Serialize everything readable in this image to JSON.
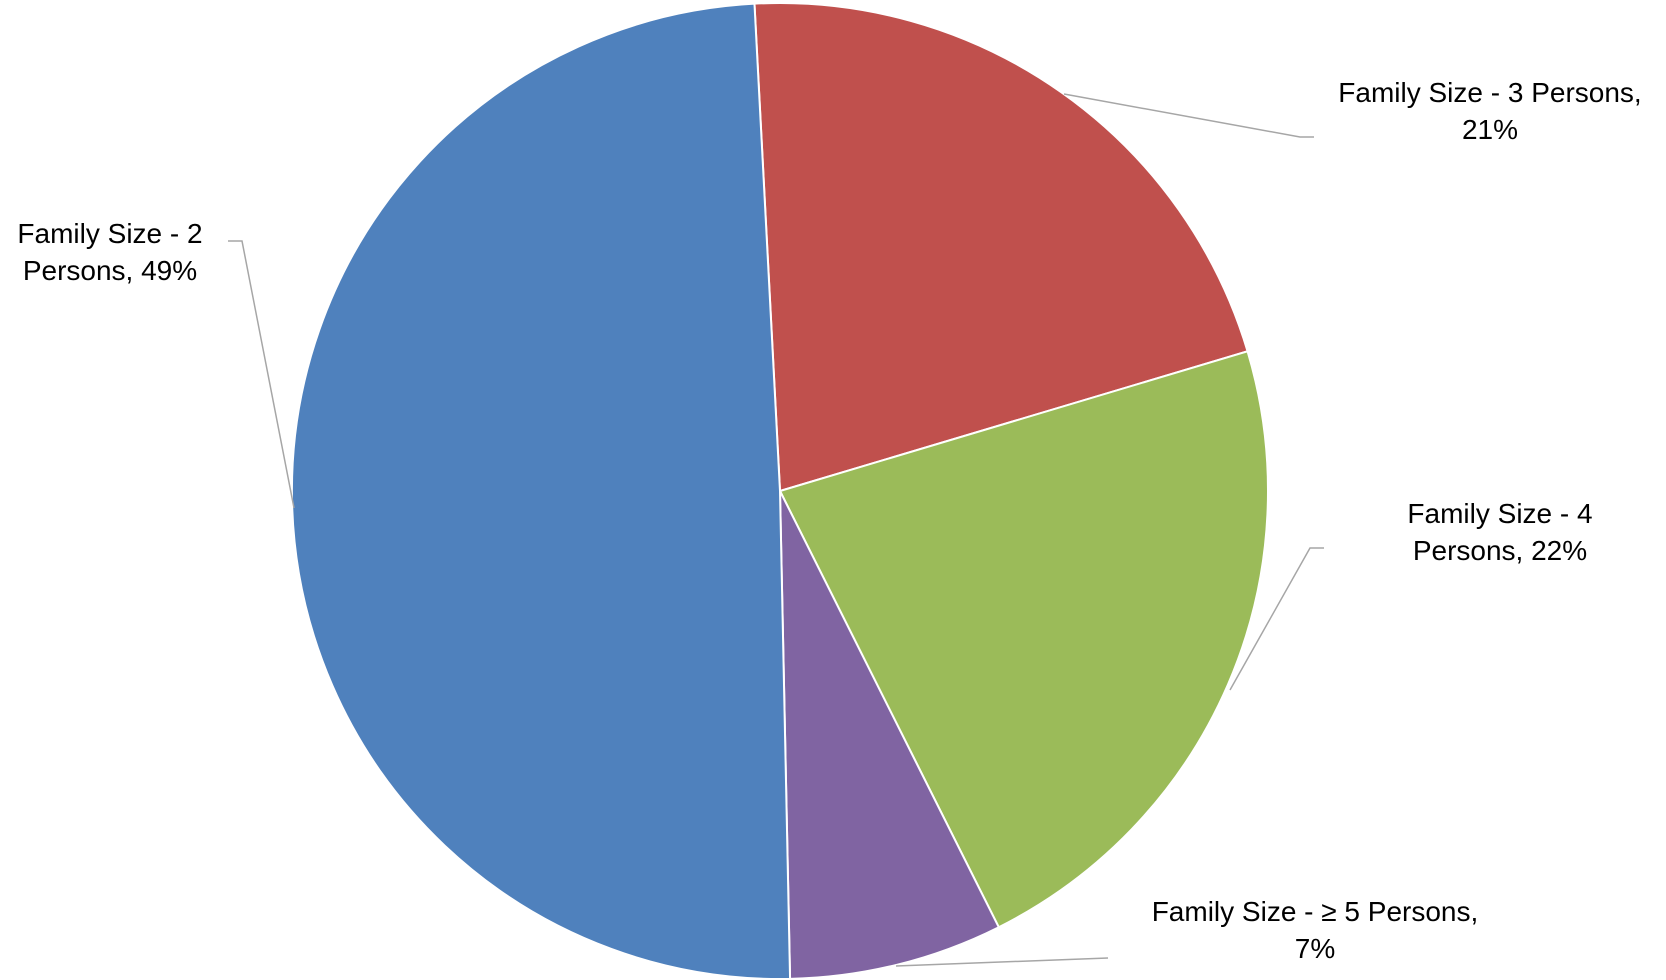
{
  "chart_data": {
    "type": "pie",
    "title": "",
    "slices": [
      {
        "category": "Family Size - 3 Persons",
        "label_lines": [
          "Family Size - 3 Persons,",
          "21%"
        ],
        "value": 21,
        "color": "#C0504D"
      },
      {
        "category": "Family Size - 4 Persons",
        "label_lines": [
          "Family Size - 4",
          "Persons, 22%"
        ],
        "value": 22,
        "color": "#9BBB59"
      },
      {
        "category": "Family Size - ≥ 5 Persons",
        "label_lines": [
          "Family Size - ≥ 5 Persons,",
          "7%"
        ],
        "value": 7,
        "color": "#8064A2"
      },
      {
        "category": "Family Size - 2 Persons",
        "label_lines": [
          "Family Size - 2",
          "Persons, 49%"
        ],
        "value": 49,
        "color": "#4F81BD"
      }
    ],
    "legend": "none",
    "data_labels": "outside with leader lines"
  }
}
